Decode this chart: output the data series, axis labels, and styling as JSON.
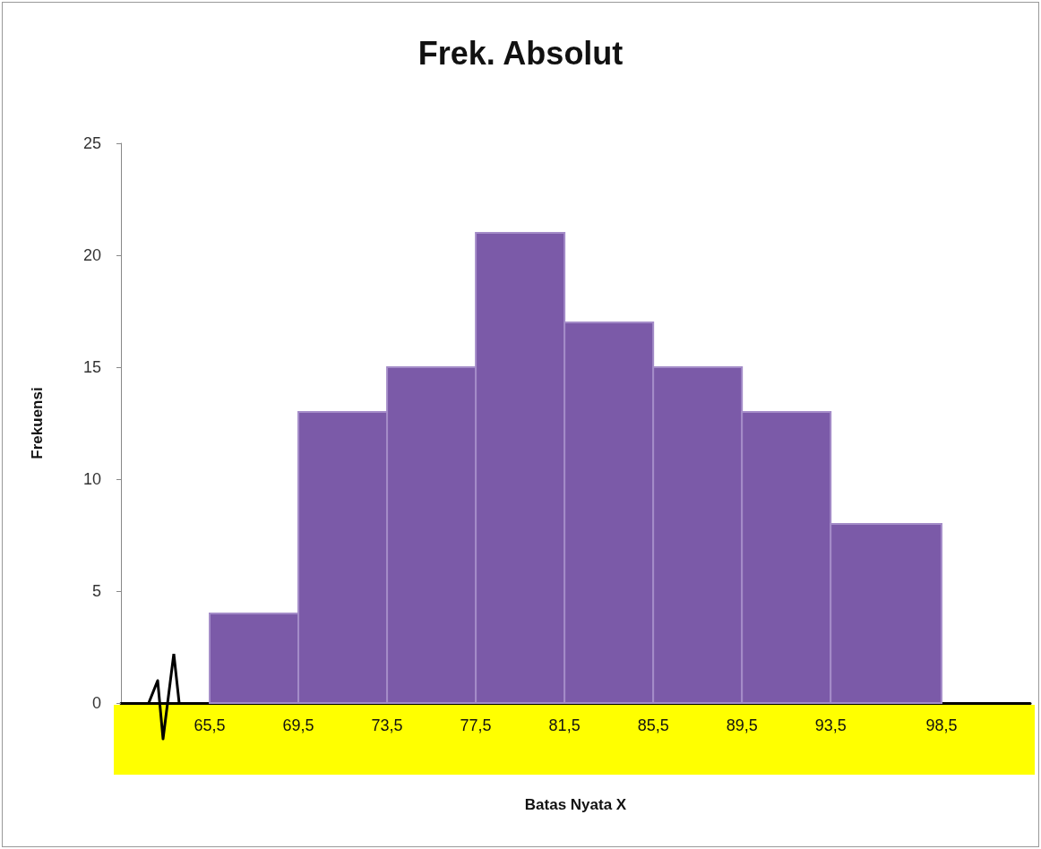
{
  "chart_data": {
    "type": "histogram",
    "title": "Frek. Absolut",
    "xlabel": "Batas Nyata X",
    "ylabel": "Frekuensi",
    "bins": [
      65.5,
      69.5,
      73.5,
      77.5,
      81.5,
      85.5,
      89.5,
      93.5,
      98.5
    ],
    "values": [
      4,
      13,
      15,
      21,
      17,
      15,
      13,
      8
    ],
    "color": "#7b5aa8",
    "xlim": [
      61.5,
      102.5
    ],
    "xticks": [
      {
        "value": 65.5,
        "label": "65,5"
      },
      {
        "value": 69.5,
        "label": "69,5"
      },
      {
        "value": 73.5,
        "label": "73,5"
      },
      {
        "value": 77.5,
        "label": "77,5"
      },
      {
        "value": 81.5,
        "label": "81,5"
      },
      {
        "value": 85.5,
        "label": "85,5"
      },
      {
        "value": 89.5,
        "label": "89,5"
      },
      {
        "value": 93.5,
        "label": "93,5"
      },
      {
        "value": 98.5,
        "label": "98,5"
      }
    ],
    "ylim": [
      0,
      25
    ],
    "yticks": [
      0,
      5,
      10,
      15,
      20,
      25
    ]
  }
}
